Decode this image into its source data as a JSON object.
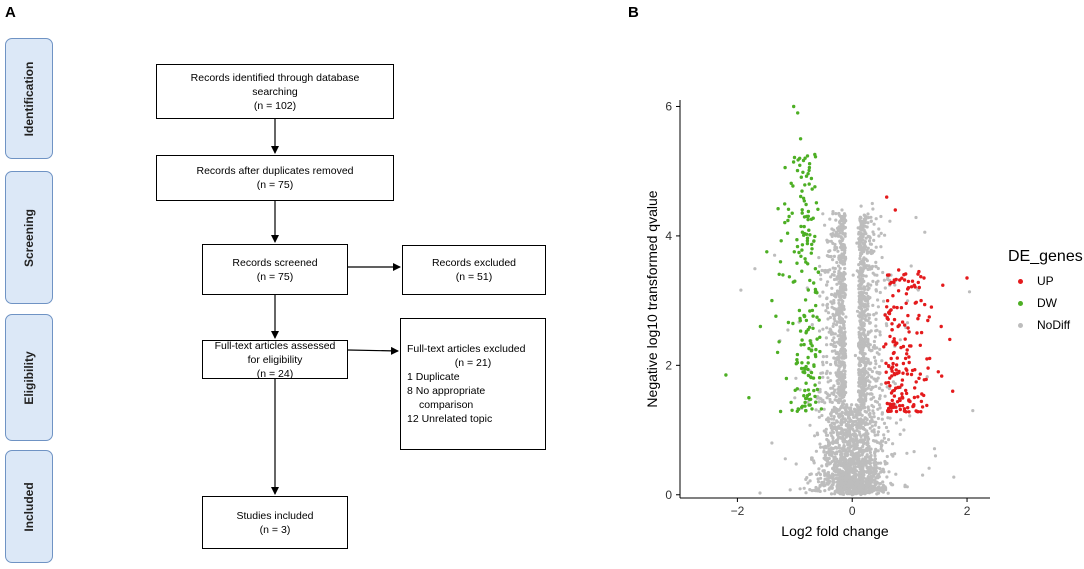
{
  "panels": {
    "a": "A",
    "b": "B"
  },
  "stages": [
    "Identification",
    "Screening",
    "Eligibility",
    "Included"
  ],
  "flow": {
    "identified": {
      "line1": "Records identified through database",
      "line2": "searching",
      "n": "(n = 102)"
    },
    "duplicates": {
      "line1": "Records after duplicates removed",
      "n": "(n =  75)"
    },
    "screened": {
      "line1": "Records screened",
      "n": "(n =  75)"
    },
    "excluded": {
      "line1": "Records excluded",
      "n": "(n = 51)"
    },
    "fulltext": {
      "line1": "Full-text articles assessed",
      "line2": "for eligibility",
      "n": "(n =  24)"
    },
    "fulltext_excluded": {
      "line1": "Full-text articles excluded",
      "n": "(n =  21)",
      "reasons": [
        "1 Duplicate",
        "8 No appropriate",
        "comparison",
        "12 Unrelated topic"
      ]
    },
    "included": {
      "line1": "Studies included",
      "n": "(n = 3)"
    }
  },
  "chart_data": {
    "type": "scatter",
    "title": "",
    "xlabel": "Log2 fold change",
    "ylabel": "Negative log10 transformed qvalue",
    "xlim": [
      -3.0,
      2.4
    ],
    "ylim": [
      -0.05,
      6.1
    ],
    "xticks": [
      -2,
      0,
      2
    ],
    "yticks": [
      0,
      2,
      4,
      6
    ],
    "xtick_labels": [
      "−2",
      "0",
      "2"
    ],
    "ytick_labels": [
      "0",
      "2",
      "4",
      "6"
    ],
    "grid": false,
    "legend": {
      "title": "DE_genes",
      "position": "right",
      "entries": [
        "UP",
        "DW",
        "NoDiff"
      ]
    },
    "series": [
      {
        "name": "UP",
        "color": "#e41a1c",
        "approx_count": 200,
        "x": [
          0.6,
          0.75,
          0.9,
          1.05,
          1.2,
          1.38,
          1.55,
          1.7,
          2.0,
          0.65,
          0.8,
          1.0,
          1.3,
          1.5,
          1.75
        ],
        "y": [
          4.6,
          4.4,
          3.4,
          3.3,
          3.0,
          2.9,
          2.6,
          2.4,
          3.35,
          2.8,
          2.6,
          2.3,
          2.1,
          1.9,
          1.6
        ]
      },
      {
        "name": "DW",
        "color": "#4daf24",
        "approx_count": 200,
        "x": [
          -1.02,
          -0.95,
          -0.9,
          -0.82,
          -0.75,
          -1.1,
          -1.25,
          -1.4,
          -1.6,
          -2.2,
          -1.8,
          -1.3,
          -1.0,
          -0.7
        ],
        "y": [
          6.0,
          5.9,
          5.5,
          5.2,
          4.8,
          4.3,
          3.6,
          3.0,
          2.6,
          1.85,
          1.5,
          2.2,
          3.3,
          3.8
        ]
      },
      {
        "name": "NoDiff",
        "color": "#bdbdbd",
        "approx_count": 15000,
        "x": [
          0.35,
          0.5,
          -0.55,
          0.9,
          1.45,
          2.1,
          -1.4,
          0.0
        ],
        "y": [
          4.5,
          4.3,
          3.4,
          1.0,
          0.6,
          1.3,
          0.8,
          0.0
        ]
      }
    ]
  }
}
